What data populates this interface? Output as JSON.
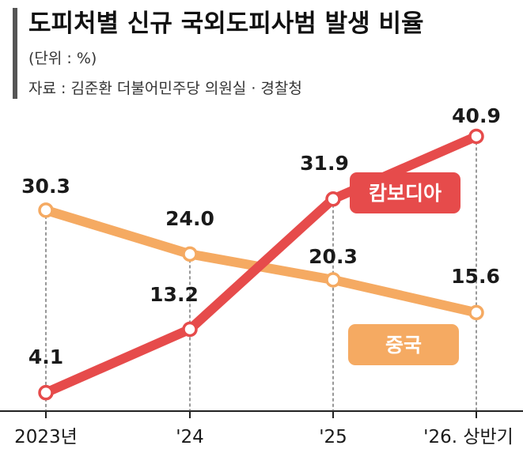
{
  "title": "도피처별 신규 국외도피사범 발생 비율",
  "unit_note": "(단위 : %)",
  "source_note": "자료 : 김준환 더불어민주당 의원실 · 경찰청",
  "chart_data": {
    "type": "line",
    "categories": [
      "2023년",
      "'24",
      "'25",
      "'26. 상반기"
    ],
    "series": [
      {
        "name": "캄보디아",
        "values": [
          4.1,
          13.2,
          31.9,
          40.9
        ],
        "labels": [
          "4.1",
          "13.2",
          "31.9",
          "40.9"
        ],
        "color": "#e64b4b"
      },
      {
        "name": "중국",
        "values": [
          30.3,
          24.0,
          20.3,
          15.6
        ],
        "labels": [
          "30.3",
          "24.0",
          "20.3",
          "15.6"
        ],
        "color": "#f5aa62"
      }
    ],
    "ylim": [
      0,
      45
    ],
    "grid": false,
    "legend": "inline"
  }
}
